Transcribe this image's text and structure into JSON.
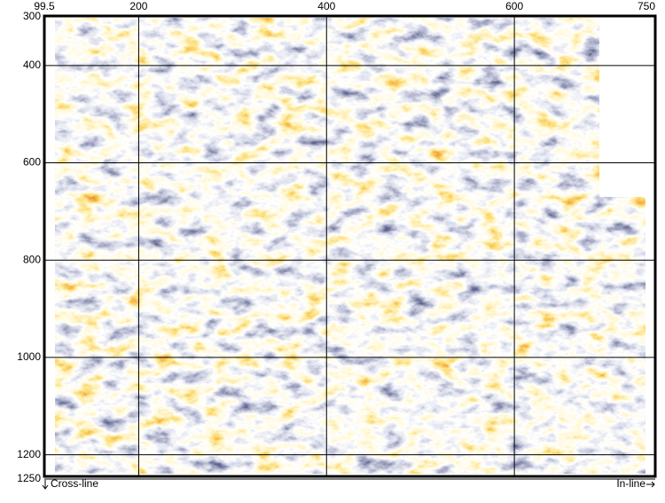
{
  "chart_data": {
    "type": "seismic",
    "x_label": "In-line",
    "y_label": "Cross-line",
    "xlim": [
      99.5,
      750
    ],
    "xticks": [
      99.5,
      200,
      400,
      600,
      750
    ],
    "ylim": [
      1250,
      300
    ],
    "yticks": [
      300,
      400,
      600,
      800,
      1000,
      1200,
      1250
    ],
    "grid": true
  }
}
